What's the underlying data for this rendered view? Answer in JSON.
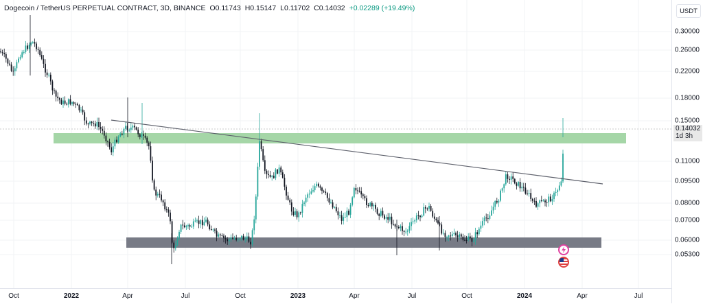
{
  "header": {
    "symbol": "Dogecoin / TetherUS PERPETUAL CONTRACT, 3D, BINANCE",
    "open": "O0.11743",
    "high": "H0.15147",
    "low": "L0.11702",
    "close": "C0.14032",
    "change": "+0.02289 (+19.49%)"
  },
  "price_axis": {
    "unit": "USDT",
    "labels": [
      "0.30000",
      "0.26000",
      "0.22000",
      "0.18000",
      "0.15000",
      "0.11000",
      "0.09500",
      "0.08000",
      "0.07000",
      "0.06000",
      "0.05300"
    ],
    "current_price": "0.14032",
    "countdown": "1d 3h"
  },
  "time_axis": {
    "labels": [
      "Oct",
      "2022",
      "Apr",
      "Jul",
      "Oct",
      "2023",
      "Apr",
      "Jul",
      "Oct",
      "2024",
      "Apr",
      "Jul"
    ]
  },
  "colors": {
    "up": "#26a69a",
    "down": "#131722",
    "resistance_zone": "#a5d6a7",
    "support_zone": "#787b86",
    "trendline": "#5d606b",
    "change": "#089981"
  },
  "icons": {
    "lightning": "lightning-event-icon",
    "flag": "us-flag-event-icon"
  }
}
